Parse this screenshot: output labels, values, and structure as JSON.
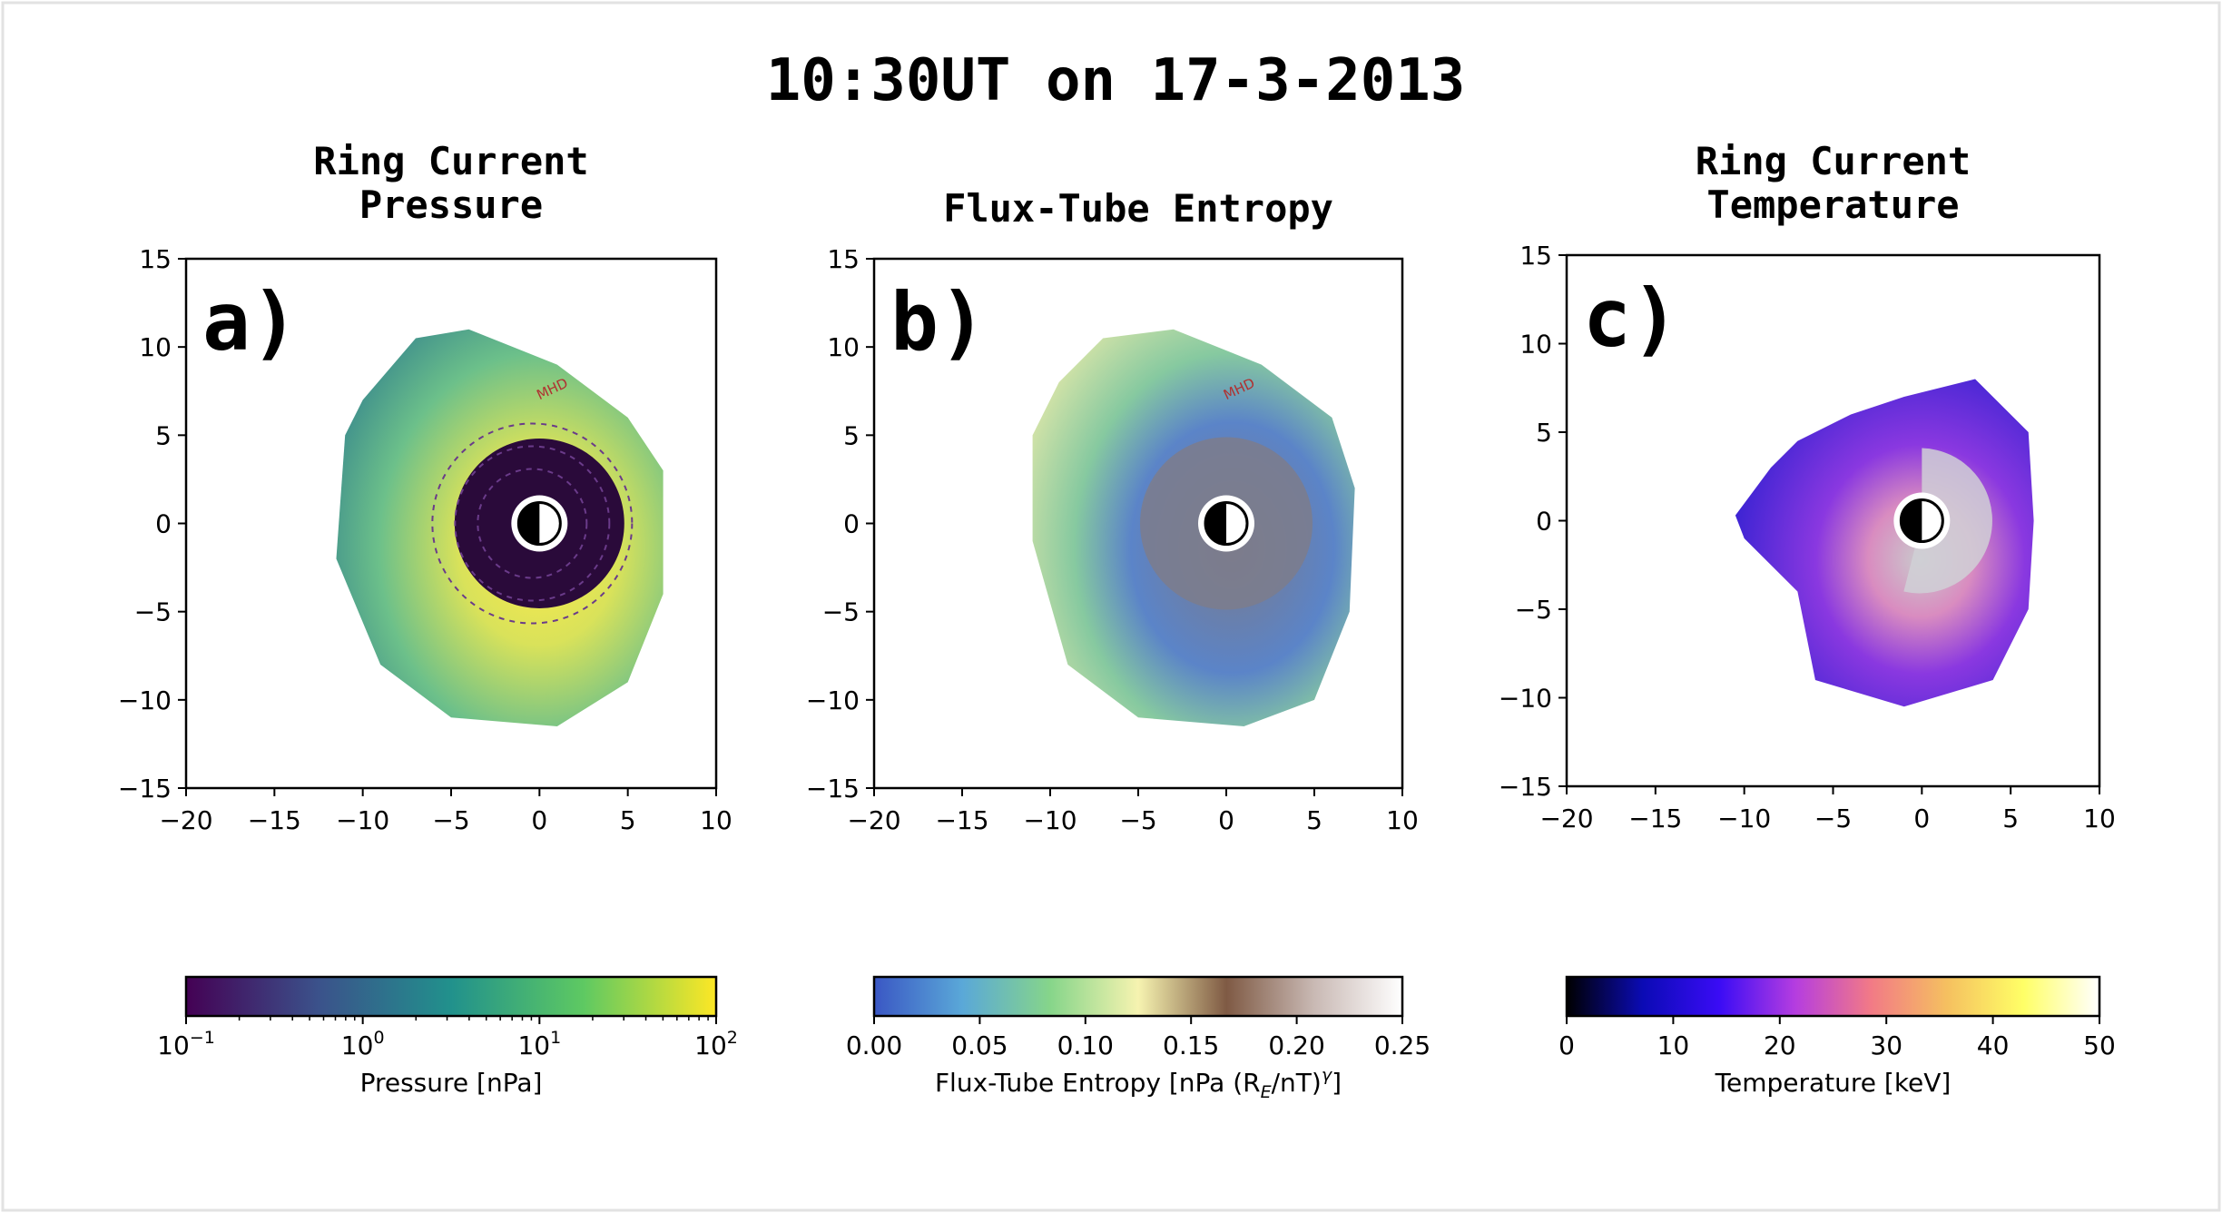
{
  "figure": {
    "title": "10:30UT on 17-3-2013"
  },
  "chart_data": [
    {
      "type": "heatmap",
      "panel_label": "a)",
      "title_lines": [
        "Ring Current",
        "Pressure"
      ],
      "xlim": [
        -20,
        10
      ],
      "ylim": [
        -15,
        15
      ],
      "xticks": [
        -20,
        -15,
        -10,
        -5,
        0,
        5,
        10
      ],
      "yticks": [
        -15,
        -10,
        -5,
        0,
        5,
        10,
        15
      ],
      "region_label": "MHD",
      "colorbar": {
        "label": "Pressure [nPa]",
        "scale": "log",
        "range": [
          0.1,
          100
        ],
        "tick_bases": [
          "10",
          "10",
          "10",
          "10"
        ],
        "tick_exponents": [
          "−1",
          "0",
          "1",
          "2"
        ],
        "colormap": [
          "#440154",
          "#3b528b",
          "#21918c",
          "#5ec962",
          "#fde725"
        ]
      }
    },
    {
      "type": "heatmap",
      "panel_label": "b)",
      "title_lines": [
        "Flux-Tube Entropy"
      ],
      "xlim": [
        -20,
        10
      ],
      "ylim": [
        -15,
        15
      ],
      "xticks": [
        -20,
        -15,
        -10,
        -5,
        0,
        5,
        10
      ],
      "yticks": [
        -15,
        -10,
        -5,
        0,
        5,
        10,
        15
      ],
      "region_label": "MHD",
      "colorbar": {
        "label": "Flux-Tube Entropy [nPa (R",
        "label_sub": "E",
        "label_mid": "/nT)",
        "label_sup": "γ",
        "label_end": "]",
        "scale": "linear",
        "range": [
          0.0,
          0.25
        ],
        "tick_labels": [
          "0.00",
          "0.05",
          "0.10",
          "0.15",
          "0.20",
          "0.25"
        ],
        "colormap": [
          "#3a57c4",
          "#5aa8d8",
          "#86d58a",
          "#f6f3b0",
          "#7f5a44",
          "#c9b9b4",
          "#ffffff"
        ]
      }
    },
    {
      "type": "heatmap",
      "panel_label": "c)",
      "title_lines": [
        "Ring Current",
        "Temperature"
      ],
      "xlim": [
        -20,
        10
      ],
      "ylim": [
        -15,
        15
      ],
      "xticks": [
        -20,
        -15,
        -10,
        -5,
        0,
        5,
        10
      ],
      "yticks": [
        -15,
        -10,
        -5,
        0,
        5,
        10,
        15
      ],
      "region_label": "",
      "colorbar": {
        "label": "Temperature [keV]",
        "scale": "linear",
        "range": [
          0,
          50
        ],
        "tick_labels": [
          "0",
          "10",
          "20",
          "30",
          "40",
          "50"
        ],
        "colormap": [
          "#000000",
          "#0b0bb5",
          "#3a0cf5",
          "#b53de0",
          "#f27a86",
          "#f5c060",
          "#ffff66",
          "#ffffff"
        ]
      }
    }
  ]
}
